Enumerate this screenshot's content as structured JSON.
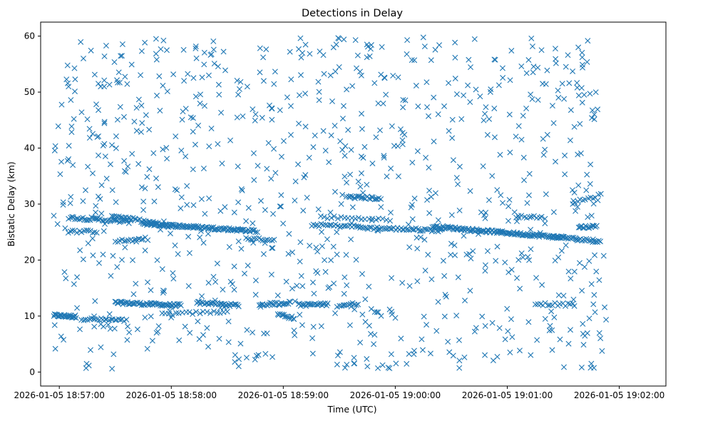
{
  "chart_data": {
    "type": "scatter",
    "title": "Detections in Delay",
    "xlabel": "Time (UTC)",
    "ylabel": "Bistatic Delay (km)",
    "marker": "x",
    "color": "#1f77b4",
    "grid": false,
    "legend": "none",
    "xlim": [
      "2026-01-05 18:56:50",
      "2026-01-05 19:02:25"
    ],
    "ylim": [
      -2.5,
      62.5
    ],
    "x_ticks": [
      "2026-01-05 18:57:00",
      "2026-01-05 18:58:00",
      "2026-01-05 18:59:00",
      "2026-01-05 19:00:00",
      "2026-01-05 19:01:00",
      "2026-01-05 19:02:00"
    ],
    "y_ticks": [
      0,
      10,
      20,
      30,
      40,
      50,
      60
    ],
    "tracks": [
      {
        "start": "2026-01-05 18:56:57",
        "end": "2026-01-05 18:57:09",
        "delay_start": 10.1,
        "delay_end": 9.9,
        "count": 30
      },
      {
        "start": "2026-01-05 18:57:12",
        "end": "2026-01-05 18:57:36",
        "delay_start": 9.5,
        "delay_end": 9.2,
        "count": 24
      },
      {
        "start": "2026-01-05 18:57:30",
        "end": "2026-01-05 18:58:05",
        "delay_start": 12.4,
        "delay_end": 11.9,
        "count": 60
      },
      {
        "start": "2026-01-05 18:57:55",
        "end": "2026-01-05 18:58:30",
        "delay_start": 10.3,
        "delay_end": 10.8,
        "count": 20
      },
      {
        "start": "2026-01-05 18:58:14",
        "end": "2026-01-05 18:58:36",
        "delay_start": 12.4,
        "delay_end": 11.9,
        "count": 30
      },
      {
        "start": "2026-01-05 18:58:47",
        "end": "2026-01-05 18:59:04",
        "delay_start": 12.0,
        "delay_end": 12.4,
        "count": 24
      },
      {
        "start": "2026-01-05 18:58:57",
        "end": "2026-01-05 18:59:06",
        "delay_start": 10.4,
        "delay_end": 9.6,
        "count": 14
      },
      {
        "start": "2026-01-05 18:59:08",
        "end": "2026-01-05 18:59:24",
        "delay_start": 12.0,
        "delay_end": 12.1,
        "count": 24
      },
      {
        "start": "2026-01-05 18:59:29",
        "end": "2026-01-05 18:59:40",
        "delay_start": 11.9,
        "delay_end": 12.2,
        "count": 12
      },
      {
        "start": "2026-01-05 18:57:05",
        "end": "2026-01-05 18:57:38",
        "delay_start": 27.6,
        "delay_end": 26.8,
        "count": 40
      },
      {
        "start": "2026-01-05 18:57:28",
        "end": "2026-01-05 18:58:00",
        "delay_start": 28.0,
        "delay_end": 26.0,
        "count": 40
      },
      {
        "start": "2026-01-05 18:57:45",
        "end": "2026-01-05 18:58:45",
        "delay_start": 26.5,
        "delay_end": 25.2,
        "count": 110
      },
      {
        "start": "2026-01-05 18:58:40",
        "end": "2026-01-05 18:58:55",
        "delay_start": 23.8,
        "delay_end": 23.6,
        "count": 14
      },
      {
        "start": "2026-01-05 18:57:05",
        "end": "2026-01-05 18:57:20",
        "delay_start": 25.1,
        "delay_end": 25.1,
        "count": 14
      },
      {
        "start": "2026-01-05 18:57:30",
        "end": "2026-01-05 18:57:45",
        "delay_start": 23.4,
        "delay_end": 23.6,
        "count": 14
      },
      {
        "start": "2026-01-05 18:59:15",
        "end": "2026-01-05 18:59:40",
        "delay_start": 26.3,
        "delay_end": 26.0,
        "count": 24
      },
      {
        "start": "2026-01-05 18:59:20",
        "end": "2026-01-05 18:59:55",
        "delay_start": 27.7,
        "delay_end": 27.2,
        "count": 20
      },
      {
        "start": "2026-01-05 18:59:34",
        "end": "2026-01-05 18:59:52",
        "delay_start": 31.3,
        "delay_end": 31.0,
        "count": 24
      },
      {
        "start": "2026-01-05 18:59:40",
        "end": "2026-01-05 19:00:25",
        "delay_start": 25.8,
        "delay_end": 25.3,
        "count": 50
      },
      {
        "start": "2026-01-05 19:00:20",
        "end": "2026-01-05 19:01:30",
        "delay_start": 26.0,
        "delay_end": 24.0,
        "count": 130
      },
      {
        "start": "2026-01-05 19:01:25",
        "end": "2026-01-05 19:01:50",
        "delay_start": 24.2,
        "delay_end": 23.3,
        "count": 34
      },
      {
        "start": "2026-01-05 19:01:38",
        "end": "2026-01-05 19:01:48",
        "delay_start": 25.9,
        "delay_end": 26.0,
        "count": 16
      },
      {
        "start": "2026-01-05 19:01:05",
        "end": "2026-01-05 19:01:20",
        "delay_start": 27.8,
        "delay_end": 27.6,
        "count": 12
      },
      {
        "start": "2026-01-05 19:01:15",
        "end": "2026-01-05 19:01:35",
        "delay_start": 12.2,
        "delay_end": 12.0,
        "count": 16
      },
      {
        "start": "2026-01-05 19:01:35",
        "end": "2026-01-05 19:01:50",
        "delay_start": 30.2,
        "delay_end": 31.6,
        "count": 12
      }
    ],
    "clutter": {
      "start": "2026-01-05 18:56:57",
      "end": "2026-01-05 19:01:53",
      "delay_min": 0.5,
      "delay_max": 59.8,
      "count": 900
    }
  }
}
